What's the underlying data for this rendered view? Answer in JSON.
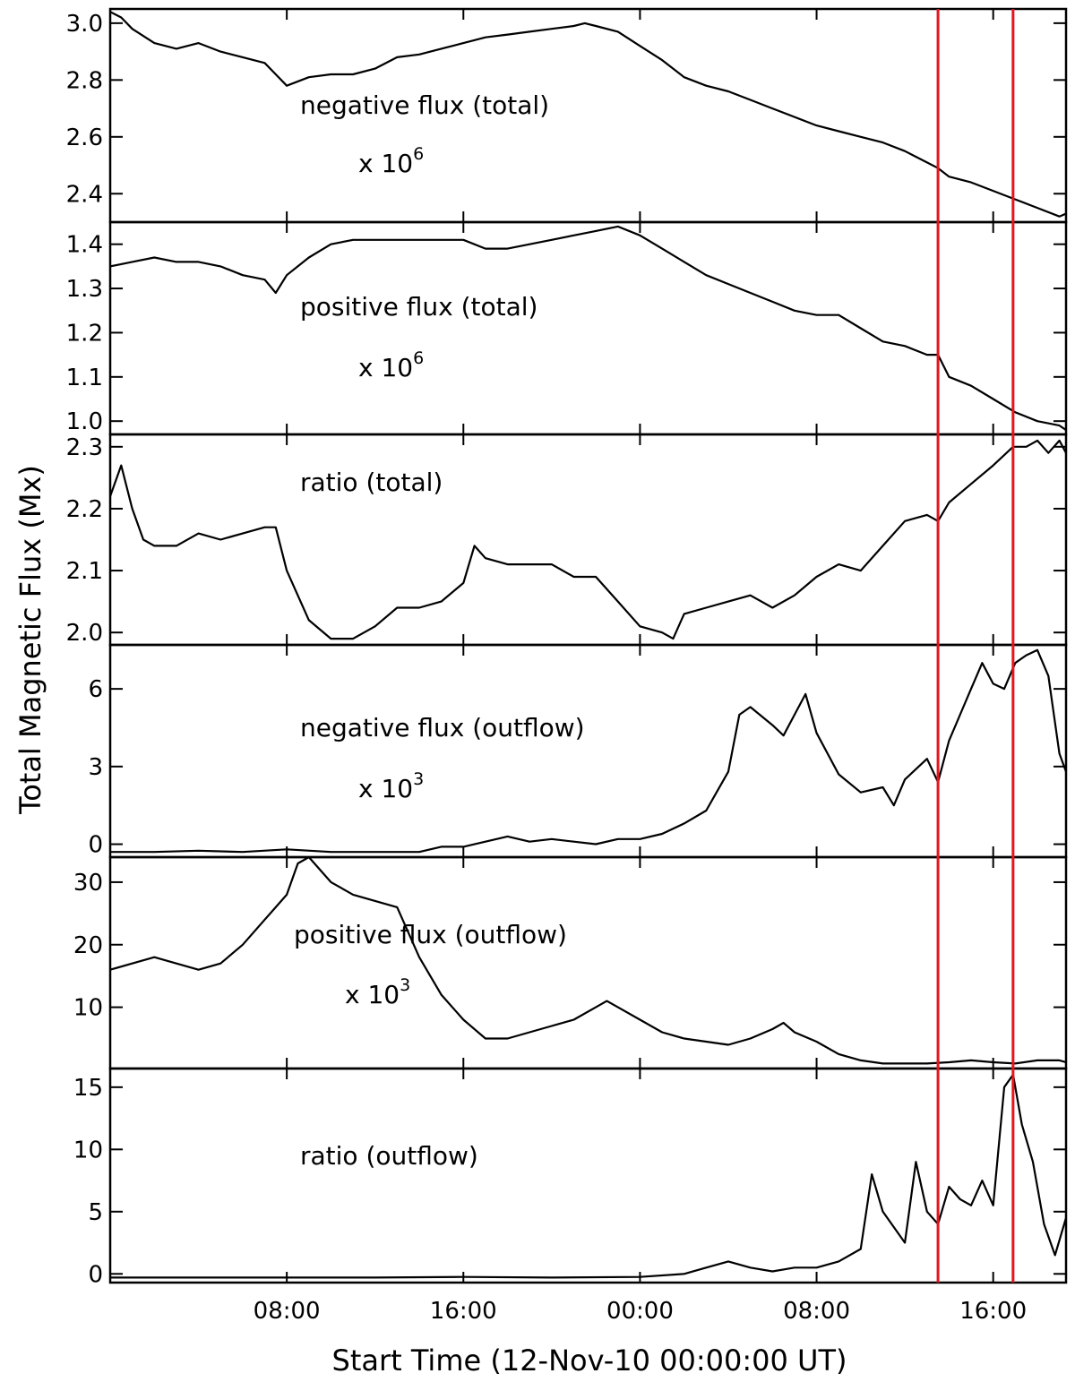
{
  "chart_data": {
    "type": "line",
    "xlabel": "Start Time (12-Nov-10 00:00:00 UT)",
    "ylabel": "Total Magnetic Flux (Mx)",
    "xlim": [
      0,
      43.3
    ],
    "x_ticks": [
      {
        "label": "08:00",
        "x": 8
      },
      {
        "label": "16:00",
        "x": 16
      },
      {
        "label": "00:00",
        "x": 24
      },
      {
        "label": "08:00",
        "x": 32
      },
      {
        "label": "16:00",
        "x": 40
      }
    ],
    "marker_lines": {
      "color": "#e8141c",
      "x": [
        37.5,
        40.9
      ]
    },
    "panels": [
      {
        "label": "negative flux (total)",
        "multiplier_prefix": "x 10",
        "multiplier_exp": "6",
        "ylim": [
          2.3,
          3.05
        ],
        "yticks": [
          2.4,
          2.6,
          2.8,
          3.0
        ],
        "points": [
          [
            0,
            3.04
          ],
          [
            0.5,
            3.02
          ],
          [
            1,
            2.98
          ],
          [
            2,
            2.93
          ],
          [
            3,
            2.91
          ],
          [
            4,
            2.93
          ],
          [
            5,
            2.9
          ],
          [
            6,
            2.88
          ],
          [
            7,
            2.86
          ],
          [
            7.5,
            2.82
          ],
          [
            8,
            2.78
          ],
          [
            9,
            2.81
          ],
          [
            10,
            2.82
          ],
          [
            11,
            2.82
          ],
          [
            12,
            2.84
          ],
          [
            13,
            2.88
          ],
          [
            14,
            2.89
          ],
          [
            15,
            2.91
          ],
          [
            16,
            2.93
          ],
          [
            17,
            2.95
          ],
          [
            18,
            2.96
          ],
          [
            19,
            2.97
          ],
          [
            20,
            2.98
          ],
          [
            21,
            2.99
          ],
          [
            21.5,
            3.0
          ],
          [
            22,
            2.99
          ],
          [
            23,
            2.97
          ],
          [
            24,
            2.92
          ],
          [
            25,
            2.87
          ],
          [
            26,
            2.81
          ],
          [
            27,
            2.78
          ],
          [
            28,
            2.76
          ],
          [
            29,
            2.73
          ],
          [
            30,
            2.7
          ],
          [
            31,
            2.67
          ],
          [
            32,
            2.64
          ],
          [
            33,
            2.62
          ],
          [
            34,
            2.6
          ],
          [
            35,
            2.58
          ],
          [
            36,
            2.55
          ],
          [
            37,
            2.51
          ],
          [
            37.5,
            2.49
          ],
          [
            38,
            2.46
          ],
          [
            39,
            2.44
          ],
          [
            40,
            2.41
          ],
          [
            41,
            2.38
          ],
          [
            42,
            2.35
          ],
          [
            43,
            2.32
          ],
          [
            43.3,
            2.33
          ]
        ]
      },
      {
        "label": "positive flux (total)",
        "multiplier_prefix": "x 10",
        "multiplier_exp": "6",
        "ylim": [
          0.97,
          1.45
        ],
        "yticks": [
          1.0,
          1.1,
          1.2,
          1.3,
          1.4
        ],
        "points": [
          [
            0,
            1.35
          ],
          [
            1,
            1.36
          ],
          [
            2,
            1.37
          ],
          [
            3,
            1.36
          ],
          [
            4,
            1.36
          ],
          [
            5,
            1.35
          ],
          [
            6,
            1.33
          ],
          [
            7,
            1.32
          ],
          [
            7.5,
            1.29
          ],
          [
            8,
            1.33
          ],
          [
            9,
            1.37
          ],
          [
            10,
            1.4
          ],
          [
            11,
            1.41
          ],
          [
            12,
            1.41
          ],
          [
            13,
            1.41
          ],
          [
            14,
            1.41
          ],
          [
            15,
            1.41
          ],
          [
            16,
            1.41
          ],
          [
            17,
            1.39
          ],
          [
            18,
            1.39
          ],
          [
            19,
            1.4
          ],
          [
            20,
            1.41
          ],
          [
            21,
            1.42
          ],
          [
            22,
            1.43
          ],
          [
            23,
            1.44
          ],
          [
            24,
            1.42
          ],
          [
            25,
            1.39
          ],
          [
            26,
            1.36
          ],
          [
            27,
            1.33
          ],
          [
            28,
            1.31
          ],
          [
            29,
            1.29
          ],
          [
            30,
            1.27
          ],
          [
            31,
            1.25
          ],
          [
            32,
            1.24
          ],
          [
            33,
            1.24
          ],
          [
            34,
            1.21
          ],
          [
            35,
            1.18
          ],
          [
            36,
            1.17
          ],
          [
            37,
            1.15
          ],
          [
            37.5,
            1.15
          ],
          [
            38,
            1.1
          ],
          [
            39,
            1.08
          ],
          [
            40,
            1.05
          ],
          [
            41,
            1.02
          ],
          [
            42,
            1.0
          ],
          [
            43,
            0.99
          ],
          [
            43.3,
            0.98
          ]
        ]
      },
      {
        "label": "ratio (total)",
        "multiplier_prefix": "",
        "multiplier_exp": "",
        "ylim": [
          1.98,
          2.32
        ],
        "yticks": [
          2.0,
          2.1,
          2.2,
          2.3
        ],
        "points": [
          [
            0,
            2.22
          ],
          [
            0.5,
            2.27
          ],
          [
            1,
            2.2
          ],
          [
            1.5,
            2.15
          ],
          [
            2,
            2.14
          ],
          [
            3,
            2.14
          ],
          [
            4,
            2.16
          ],
          [
            5,
            2.15
          ],
          [
            6,
            2.16
          ],
          [
            7,
            2.17
          ],
          [
            7.5,
            2.17
          ],
          [
            8,
            2.1
          ],
          [
            9,
            2.02
          ],
          [
            10,
            1.99
          ],
          [
            11,
            1.99
          ],
          [
            12,
            2.01
          ],
          [
            13,
            2.04
          ],
          [
            14,
            2.04
          ],
          [
            15,
            2.05
          ],
          [
            16,
            2.08
          ],
          [
            16.5,
            2.14
          ],
          [
            17,
            2.12
          ],
          [
            18,
            2.11
          ],
          [
            19,
            2.11
          ],
          [
            20,
            2.11
          ],
          [
            21,
            2.09
          ],
          [
            22,
            2.09
          ],
          [
            23,
            2.05
          ],
          [
            24,
            2.01
          ],
          [
            25,
            2.0
          ],
          [
            25.5,
            1.99
          ],
          [
            26,
            2.03
          ],
          [
            27,
            2.04
          ],
          [
            28,
            2.05
          ],
          [
            29,
            2.06
          ],
          [
            30,
            2.04
          ],
          [
            31,
            2.06
          ],
          [
            32,
            2.09
          ],
          [
            33,
            2.11
          ],
          [
            34,
            2.1
          ],
          [
            35,
            2.14
          ],
          [
            36,
            2.18
          ],
          [
            37,
            2.19
          ],
          [
            37.5,
            2.18
          ],
          [
            38,
            2.21
          ],
          [
            39,
            2.24
          ],
          [
            40,
            2.27
          ],
          [
            40.9,
            2.3
          ],
          [
            41.5,
            2.3
          ],
          [
            42,
            2.31
          ],
          [
            42.5,
            2.29
          ],
          [
            43,
            2.31
          ],
          [
            43.3,
            2.29
          ]
        ]
      },
      {
        "label": "negative flux (outflow)",
        "multiplier_prefix": "x 10",
        "multiplier_exp": "3",
        "ylim": [
          -0.5,
          7.7
        ],
        "yticks": [
          0,
          3,
          6
        ],
        "points": [
          [
            0,
            -0.3
          ],
          [
            2,
            -0.3
          ],
          [
            4,
            -0.25
          ],
          [
            6,
            -0.3
          ],
          [
            8,
            -0.2
          ],
          [
            10,
            -0.3
          ],
          [
            12,
            -0.3
          ],
          [
            14,
            -0.3
          ],
          [
            15,
            -0.1
          ],
          [
            16,
            -0.1
          ],
          [
            17,
            0.1
          ],
          [
            18,
            0.3
          ],
          [
            19,
            0.1
          ],
          [
            20,
            0.2
          ],
          [
            21,
            0.1
          ],
          [
            22,
            0.0
          ],
          [
            23,
            0.2
          ],
          [
            24,
            0.2
          ],
          [
            25,
            0.4
          ],
          [
            26,
            0.8
          ],
          [
            27,
            1.3
          ],
          [
            28,
            2.8
          ],
          [
            28.5,
            5.0
          ],
          [
            29,
            5.3
          ],
          [
            30,
            4.6
          ],
          [
            30.5,
            4.2
          ],
          [
            31,
            5.0
          ],
          [
            31.5,
            5.8
          ],
          [
            32,
            4.3
          ],
          [
            33,
            2.7
          ],
          [
            34,
            2.0
          ],
          [
            35,
            2.2
          ],
          [
            35.5,
            1.5
          ],
          [
            36,
            2.5
          ],
          [
            37,
            3.3
          ],
          [
            37.5,
            2.4
          ],
          [
            38,
            4.0
          ],
          [
            38.5,
            5.0
          ],
          [
            39,
            6.0
          ],
          [
            39.5,
            7.0
          ],
          [
            40,
            6.2
          ],
          [
            40.5,
            6.0
          ],
          [
            41,
            7.0
          ],
          [
            41.5,
            7.3
          ],
          [
            42,
            7.5
          ],
          [
            42.5,
            6.5
          ],
          [
            43,
            3.5
          ],
          [
            43.3,
            2.8
          ]
        ]
      },
      {
        "label": "positive flux (outflow)",
        "multiplier_prefix": "x 10",
        "multiplier_exp": "3",
        "ylim": [
          0.2,
          34
        ],
        "yticks": [
          10,
          20,
          30
        ],
        "points": [
          [
            0,
            16
          ],
          [
            1,
            17
          ],
          [
            2,
            18
          ],
          [
            3,
            17
          ],
          [
            4,
            16
          ],
          [
            5,
            17
          ],
          [
            6,
            20
          ],
          [
            7,
            24
          ],
          [
            7.5,
            26
          ],
          [
            8,
            28
          ],
          [
            8.5,
            33
          ],
          [
            9,
            34
          ],
          [
            10,
            30
          ],
          [
            11,
            28
          ],
          [
            12,
            27
          ],
          [
            13,
            26
          ],
          [
            14,
            18
          ],
          [
            15,
            12
          ],
          [
            16,
            8
          ],
          [
            17,
            5
          ],
          [
            18,
            5
          ],
          [
            19,
            6
          ],
          [
            20,
            7
          ],
          [
            21,
            8
          ],
          [
            22,
            10
          ],
          [
            22.5,
            11
          ],
          [
            23,
            10
          ],
          [
            24,
            8
          ],
          [
            25,
            6
          ],
          [
            26,
            5
          ],
          [
            27,
            4.5
          ],
          [
            28,
            4.0
          ],
          [
            29,
            5.0
          ],
          [
            30,
            6.5
          ],
          [
            30.5,
            7.5
          ],
          [
            31,
            6.0
          ],
          [
            32,
            4.5
          ],
          [
            33,
            2.5
          ],
          [
            34,
            1.5
          ],
          [
            35,
            1.0
          ],
          [
            36,
            1.0
          ],
          [
            37,
            1.0
          ],
          [
            38,
            1.2
          ],
          [
            39,
            1.5
          ],
          [
            40,
            1.2
          ],
          [
            41,
            1.0
          ],
          [
            42,
            1.5
          ],
          [
            43,
            1.5
          ],
          [
            43.3,
            1.2
          ]
        ]
      },
      {
        "label": "ratio (outflow)",
        "multiplier_prefix": "",
        "multiplier_exp": "",
        "ylim": [
          -0.7,
          16.5
        ],
        "yticks": [
          0,
          5,
          10,
          15
        ],
        "points": [
          [
            0,
            -0.3
          ],
          [
            4,
            -0.3
          ],
          [
            8,
            -0.3
          ],
          [
            12,
            -0.3
          ],
          [
            16,
            -0.25
          ],
          [
            20,
            -0.3
          ],
          [
            24,
            -0.25
          ],
          [
            26,
            0.0
          ],
          [
            27,
            0.5
          ],
          [
            28,
            1.0
          ],
          [
            29,
            0.5
          ],
          [
            30,
            0.2
          ],
          [
            31,
            0.5
          ],
          [
            32,
            0.5
          ],
          [
            33,
            1.0
          ],
          [
            34,
            2.0
          ],
          [
            34.5,
            8.0
          ],
          [
            35,
            5.0
          ],
          [
            36,
            2.5
          ],
          [
            36.5,
            9.0
          ],
          [
            37,
            5.0
          ],
          [
            37.5,
            4.0
          ],
          [
            38,
            7.0
          ],
          [
            38.5,
            6.0
          ],
          [
            39,
            5.5
          ],
          [
            39.5,
            7.5
          ],
          [
            40,
            5.5
          ],
          [
            40.5,
            15.0
          ],
          [
            40.9,
            16.0
          ],
          [
            41.3,
            12.0
          ],
          [
            41.8,
            9.0
          ],
          [
            42.3,
            4.0
          ],
          [
            42.8,
            1.5
          ],
          [
            43.3,
            4.5
          ]
        ]
      }
    ]
  }
}
